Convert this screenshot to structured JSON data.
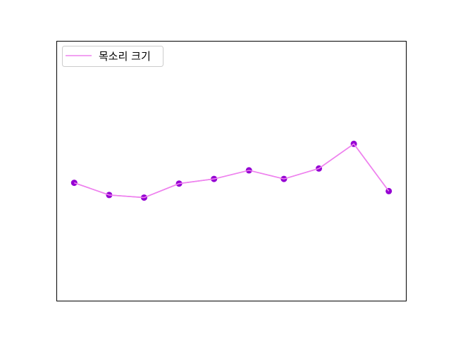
{
  "chart_data": {
    "type": "line",
    "title": "",
    "xlabel": "",
    "ylabel": "",
    "axes_visible_ticks": false,
    "grid": false,
    "legend": {
      "position": "top-left",
      "entries": [
        "목소리 크기"
      ]
    },
    "x": [
      0,
      1,
      2,
      3,
      4,
      5,
      6,
      7,
      8,
      9
    ],
    "xlim": [
      -0.5,
      9.5
    ],
    "ylim": [
      0,
      100
    ],
    "series": [
      {
        "name": "목소리 크기",
        "values": [
          45.5,
          40.8,
          39.8,
          45.2,
          47.0,
          50.3,
          47.0,
          51.0,
          60.5,
          42.3
        ],
        "line_color": "#ee82ee",
        "marker_color": "#9400d3"
      }
    ]
  }
}
